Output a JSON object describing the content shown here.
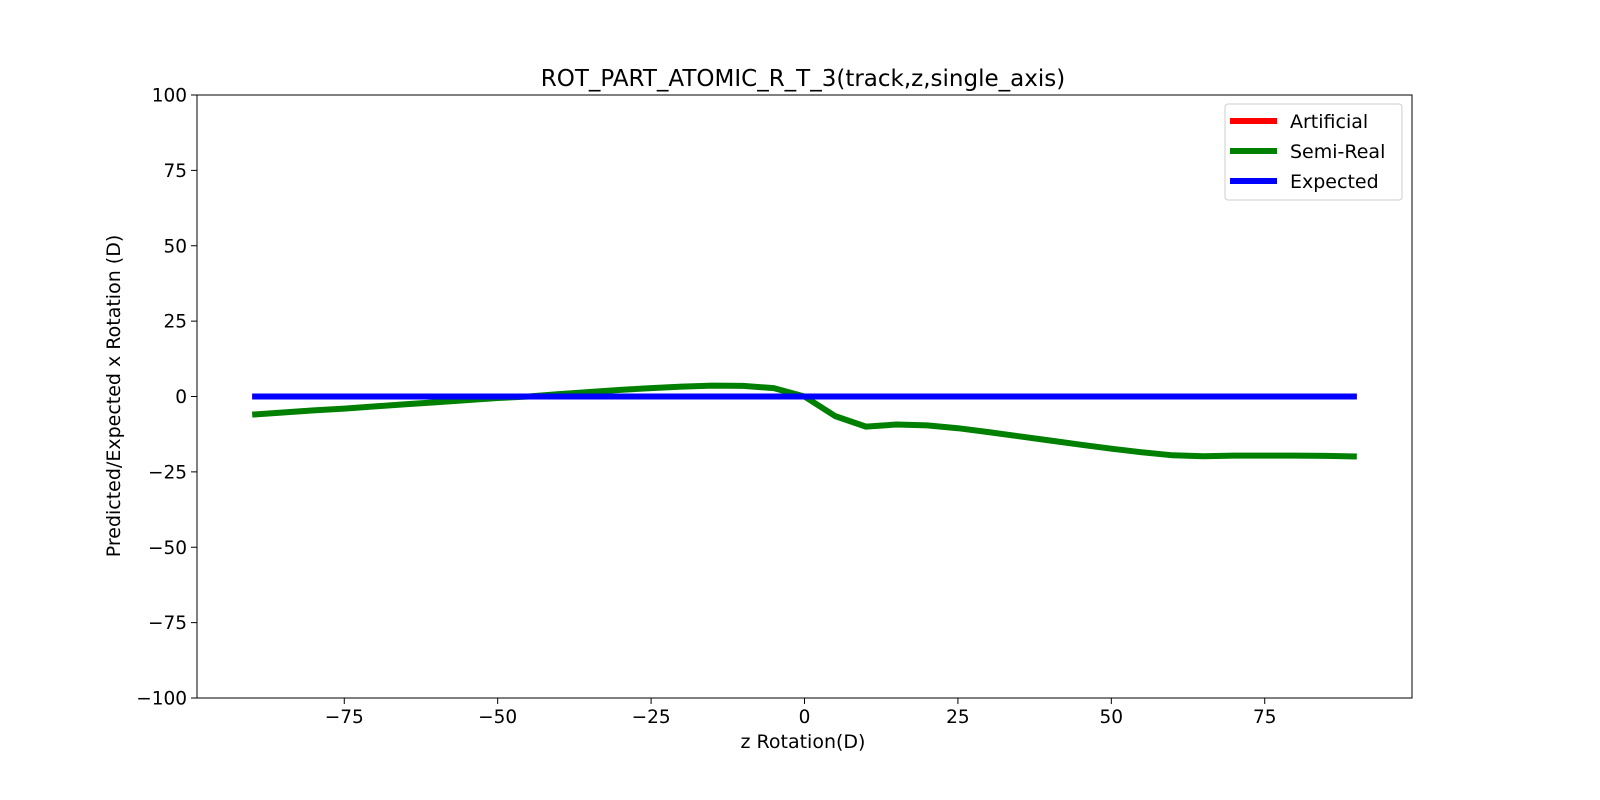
{
  "chart_data": {
    "type": "line",
    "title": "ROT_PART_ATOMIC_R_T_3(track,z,single_axis)",
    "xlabel": "z Rotation(D)",
    "ylabel": "Predicted/Expected x Rotation (D)",
    "xlim": [
      -99,
      99
    ],
    "ylim": [
      -100,
      100
    ],
    "xticks": [
      -75,
      -50,
      -25,
      0,
      25,
      50,
      75
    ],
    "yticks": [
      -100,
      -75,
      -50,
      -25,
      0,
      25,
      50,
      75,
      100
    ],
    "xtick_labels": [
      "−75",
      "−50",
      "−25",
      "0",
      "25",
      "50",
      "75"
    ],
    "ytick_labels": [
      "−100",
      "−75",
      "−50",
      "−25",
      "0",
      "25",
      "50",
      "75",
      "100"
    ],
    "grid": false,
    "legend_position": "top-right",
    "series": [
      {
        "name": "Artificial",
        "color": "#ff0000",
        "x": [
          -90,
          -85,
          -80,
          -75,
          -70,
          -65,
          -60,
          -55,
          -50,
          -45,
          -40,
          -35,
          -30,
          -25,
          -20,
          -15,
          -10,
          -5,
          0,
          5,
          10,
          15,
          20,
          25,
          30,
          35,
          40,
          45,
          50,
          55,
          60,
          65,
          70,
          75,
          80,
          85,
          90
        ],
        "y": [
          0,
          0,
          0,
          0,
          0,
          0,
          0,
          0,
          0,
          0,
          0,
          0,
          0,
          0,
          0,
          0,
          0,
          0,
          0,
          0,
          0,
          0,
          0,
          0,
          0,
          0,
          0,
          0,
          0,
          0,
          0,
          0,
          0,
          0,
          0,
          0,
          0
        ]
      },
      {
        "name": "Semi-Real",
        "color": "#008000",
        "x": [
          -90,
          -85,
          -80,
          -75,
          -70,
          -65,
          -60,
          -55,
          -50,
          -45,
          -40,
          -35,
          -30,
          -25,
          -20,
          -15,
          -10,
          -5,
          0,
          5,
          10,
          15,
          20,
          25,
          30,
          35,
          40,
          45,
          50,
          55,
          60,
          65,
          70,
          75,
          80,
          85,
          90
        ],
        "y": [
          -6,
          -5.3,
          -4.6,
          -4,
          -3.3,
          -2.6,
          -1.9,
          -1.2,
          -0.5,
          0,
          0.8,
          1.5,
          2.2,
          2.8,
          3.3,
          3.6,
          3.5,
          2.8,
          0,
          -6.5,
          -10,
          -9.3,
          -9.6,
          -10.5,
          -11.8,
          -13.2,
          -14.6,
          -16,
          -17.3,
          -18.5,
          -19.5,
          -19.8,
          -19.6,
          -19.6,
          -19.6,
          -19.7,
          -19.9
        ]
      },
      {
        "name": "Expected",
        "color": "#0000ff",
        "x": [
          -90,
          90
        ],
        "y": [
          0,
          0
        ]
      }
    ]
  }
}
